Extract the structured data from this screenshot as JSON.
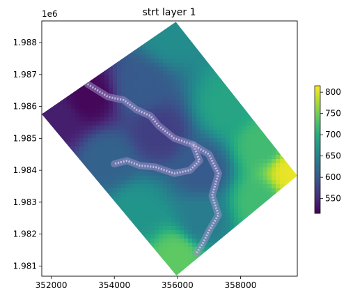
{
  "chart_data": {
    "type": "heatmap",
    "title": "strt layer 1",
    "xlabel": "",
    "ylabel": "",
    "y_offset_label": "1e6",
    "xlim": [
      351700,
      359800
    ],
    "ylim": [
      1980680,
      1988680
    ],
    "xticks": [
      352000,
      354000,
      356000,
      358000
    ],
    "xtick_labels": [
      "352000",
      "354000",
      "356000",
      "358000"
    ],
    "yticks": [
      1981000,
      1982000,
      1983000,
      1984000,
      1985000,
      1986000,
      1987000,
      1988000
    ],
    "ytick_labels": [
      "1.981",
      "1.982",
      "1.983",
      "1.984",
      "1.985",
      "1.986",
      "1.987",
      "1.988"
    ],
    "domain_polygon": [
      [
        355950,
        1988650
      ],
      [
        359800,
        1983830
      ],
      [
        355970,
        1980700
      ],
      [
        351700,
        1985760
      ]
    ],
    "colormap": "viridis",
    "colorbar": {
      "vmin": 515,
      "vmax": 815,
      "ticks": [
        550,
        600,
        650,
        700,
        750,
        800
      ],
      "tick_labels": [
        "550",
        "600",
        "650",
        "700",
        "750",
        "800"
      ]
    },
    "value_field_samples": [
      {
        "x": 353200,
        "y": 1986300,
        "value": 520
      },
      {
        "x": 352200,
        "y": 1985600,
        "value": 540
      },
      {
        "x": 354800,
        "y": 1986600,
        "value": 600
      },
      {
        "x": 355800,
        "y": 1988300,
        "value": 660
      },
      {
        "x": 355400,
        "y": 1985200,
        "value": 570
      },
      {
        "x": 356800,
        "y": 1984000,
        "value": 600
      },
      {
        "x": 357600,
        "y": 1986000,
        "value": 690
      },
      {
        "x": 358700,
        "y": 1984800,
        "value": 720
      },
      {
        "x": 359600,
        "y": 1983900,
        "value": 805
      },
      {
        "x": 358600,
        "y": 1983000,
        "value": 720
      },
      {
        "x": 356800,
        "y": 1982400,
        "value": 640
      },
      {
        "x": 356000,
        "y": 1981300,
        "value": 740
      },
      {
        "x": 354700,
        "y": 1982700,
        "value": 670
      },
      {
        "x": 353800,
        "y": 1984300,
        "value": 610
      }
    ],
    "river_channel_path": [
      [
        353150,
        1986700
      ],
      [
        353800,
        1986300
      ],
      [
        354300,
        1986200
      ],
      [
        354700,
        1985900
      ],
      [
        355150,
        1985700
      ],
      [
        355400,
        1985400
      ],
      [
        355900,
        1985000
      ],
      [
        356500,
        1984800
      ],
      [
        356700,
        1984300
      ],
      [
        356400,
        1984000
      ],
      [
        355900,
        1983900
      ],
      [
        355300,
        1984100
      ],
      [
        354800,
        1984150
      ],
      [
        354400,
        1984300
      ],
      [
        354000,
        1984200
      ]
    ],
    "river_channel_branch": [
      [
        356500,
        1984800
      ],
      [
        357000,
        1984500
      ],
      [
        357300,
        1983900
      ],
      [
        357100,
        1983200
      ],
      [
        357300,
        1982600
      ],
      [
        357000,
        1982100
      ],
      [
        356800,
        1981700
      ],
      [
        356600,
        1981400
      ]
    ]
  }
}
